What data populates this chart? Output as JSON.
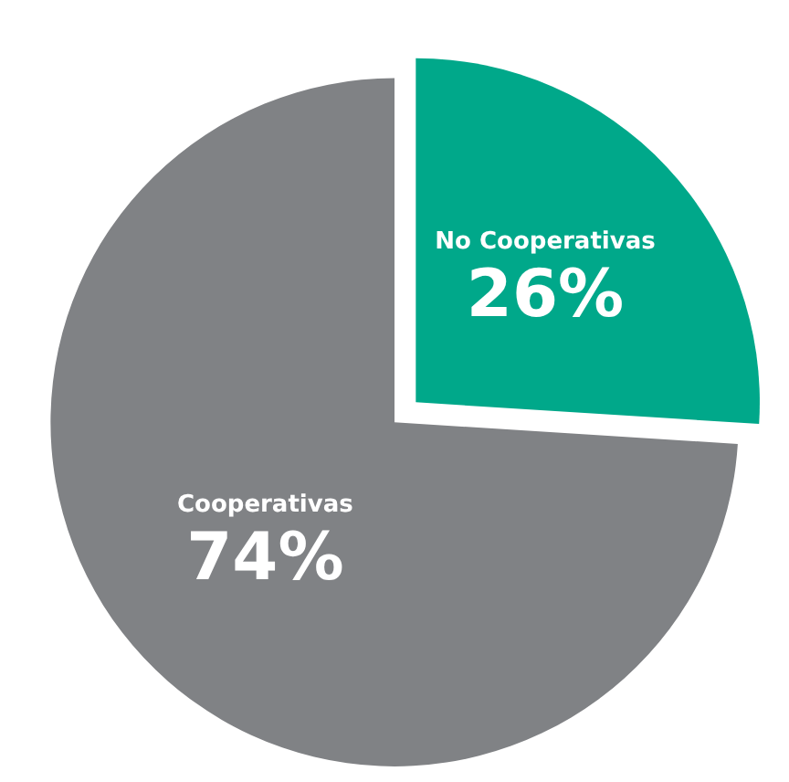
{
  "chart_data": {
    "type": "pie",
    "categories": [
      "No Cooperativas",
      "Cooperativas"
    ],
    "values": [
      26,
      74
    ],
    "colors": [
      "#00a88a",
      "#808285"
    ],
    "value_labels": [
      "26%",
      "74%"
    ]
  }
}
